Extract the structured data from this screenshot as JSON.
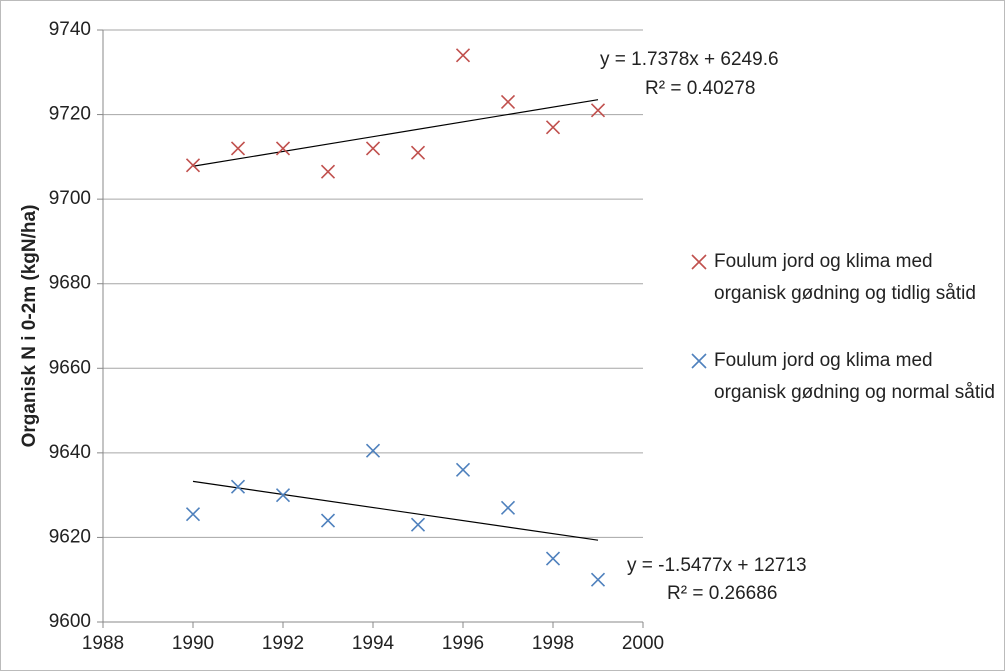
{
  "chart_data": {
    "type": "scatter",
    "y_label": "Organisk N i 0-2m (kgN/ha)",
    "x": [
      1990,
      1991,
      1992,
      1993,
      1994,
      1995,
      1996,
      1997,
      1998,
      1999
    ],
    "series": [
      {
        "name": "Foulum jord og klima med organisk gødning og tidlig såtid",
        "color": "#c0504d",
        "values": [
          9708,
          9712,
          9712,
          9706.5,
          9712,
          9711,
          9734,
          9723,
          9717,
          9721
        ],
        "trendline": {
          "equation": "y = 1.7378x + 6249.6",
          "r2": "R² = 0.40278"
        }
      },
      {
        "name": "Foulum jord og klima med organisk gødning og normal såtid",
        "color": "#4f81bd",
        "values": [
          9625.5,
          9632,
          9630,
          9624,
          9640.5,
          9623,
          9636,
          9627,
          9615,
          9610
        ],
        "trendline": {
          "equation": "y = -1.5477x + 12713",
          "r2": "R² = 0.26686"
        }
      }
    ],
    "xlim": [
      1988,
      2000
    ],
    "xticks": [
      1988,
      1990,
      1992,
      1994,
      1996,
      1998,
      2000
    ],
    "ylim": [
      9600,
      9740
    ],
    "yticks": [
      9600,
      9620,
      9640,
      9660,
      9680,
      9700,
      9720,
      9740
    ],
    "grid": true
  }
}
